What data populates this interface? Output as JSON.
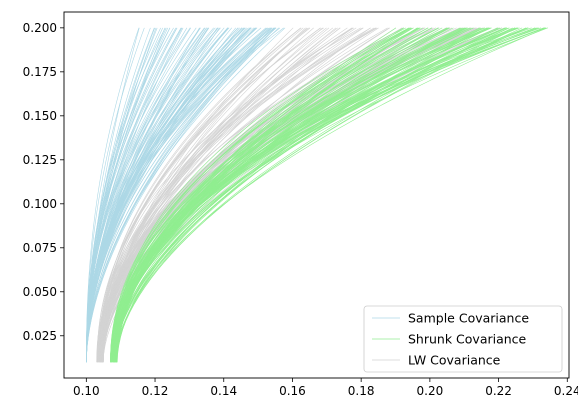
{
  "chart_data": {
    "type": "line",
    "title": "",
    "xlabel": "",
    "ylabel": "",
    "xlim": [
      0.0935,
      0.2405
    ],
    "ylim": [
      0.001,
      0.209
    ],
    "grid": false,
    "legend_position": "lower-right",
    "x_ticks": [
      "0.10",
      "0.12",
      "0.14",
      "0.16",
      "0.18",
      "0.20",
      "0.22",
      "0.24"
    ],
    "y_ticks": [
      "0.025",
      "0.050",
      "0.075",
      "0.100",
      "0.125",
      "0.150",
      "0.175",
      "0.200"
    ],
    "y_range_of_curves": [
      0.01,
      0.2
    ],
    "series": [
      {
        "name": "Sample Covariance",
        "color": "#add8e6",
        "curve_count": 100,
        "start_x_range": [
          0.1,
          0.1
        ],
        "end_x_range": [
          0.115,
          0.158
        ]
      },
      {
        "name": "Shrunk Covariance",
        "color": "#90ee90",
        "curve_count": 100,
        "start_x_range": [
          0.107,
          0.109
        ],
        "end_x_range": [
          0.19,
          0.235
        ]
      },
      {
        "name": "LW Covariance",
        "color": "#d3d3d3",
        "curve_count": 100,
        "start_x_range": [
          0.103,
          0.105
        ],
        "end_x_range": [
          0.16,
          0.222
        ]
      }
    ]
  }
}
